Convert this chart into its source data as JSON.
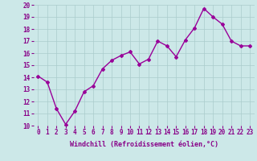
{
  "x": [
    0,
    1,
    2,
    3,
    4,
    5,
    6,
    7,
    8,
    9,
    10,
    11,
    12,
    13,
    14,
    15,
    16,
    17,
    18,
    19,
    20,
    21,
    22,
    23
  ],
  "y": [
    14.1,
    13.6,
    11.4,
    10.1,
    11.2,
    12.8,
    13.3,
    14.7,
    15.4,
    15.8,
    16.1,
    15.1,
    15.5,
    17.0,
    16.6,
    15.7,
    17.1,
    18.1,
    19.7,
    19.0,
    18.4,
    17.0,
    16.6,
    16.6
  ],
  "line_color": "#990099",
  "marker": "D",
  "marker_size": 2.0,
  "ylim": [
    10,
    20
  ],
  "xlim_min": -0.5,
  "xlim_max": 23.5,
  "yticks": [
    10,
    11,
    12,
    13,
    14,
    15,
    16,
    17,
    18,
    19,
    20
  ],
  "xticks": [
    0,
    1,
    2,
    3,
    4,
    5,
    6,
    7,
    8,
    9,
    10,
    11,
    12,
    13,
    14,
    15,
    16,
    17,
    18,
    19,
    20,
    21,
    22,
    23
  ],
  "bg_color": "#cce8e8",
  "grid_color": "#aacccc",
  "tick_label_fontsize": 5.5,
  "xlabel": "Windchill (Refroidissement éolien,°C)",
  "xlabel_fontsize": 6.0,
  "label_color": "#880088",
  "linewidth": 1.0
}
